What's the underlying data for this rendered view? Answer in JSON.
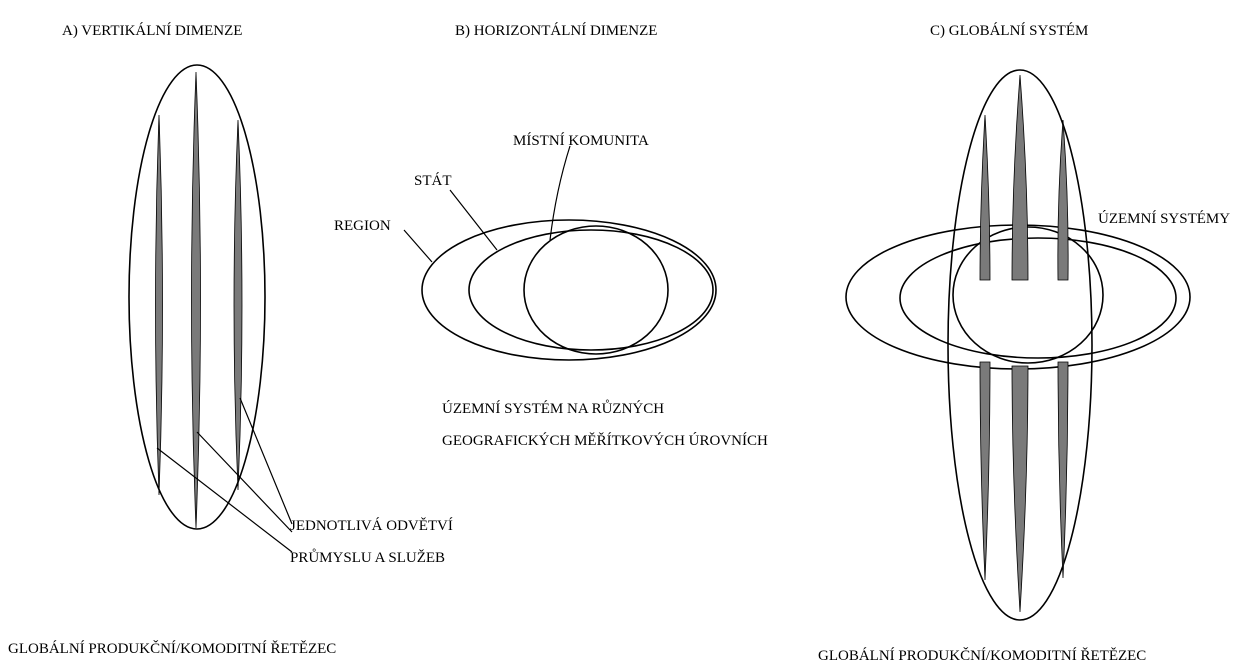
{
  "panels": [
    {
      "title": "A) VERTIKÁLNÍ DIMENZE",
      "labels": [
        "JEDNOTLIVÁ ODVĚTVÍ",
        "PRŮMYSLU A SLUŽEB"
      ]
    },
    {
      "title": "B) HORIZONTÁLNÍ DIMENZE",
      "labels": [
        "MÍSTNÍ KOMUNITA",
        "STÁT",
        "REGION"
      ],
      "caption": [
        "ÚZEMNÍ SYSTÉM NA RŮZNÝCH",
        "GEOGRAFICKÝCH MĚŘÍTKOVÝCH ÚROVNÍCH"
      ]
    },
    {
      "title": "C) GLOBÁLNÍ SYSTÉM",
      "labels": [
        "ÚZEMNÍ SYSTÉMY"
      ]
    }
  ],
  "footer": [
    "GLOBÁLNÍ PRODUKČNÍ/KOMODITNÍ ŘETĚZEC",
    "GLOBÁLNÍ PRODUKČNÍ/KOMODITNÍ ŘETĚZEC"
  ]
}
